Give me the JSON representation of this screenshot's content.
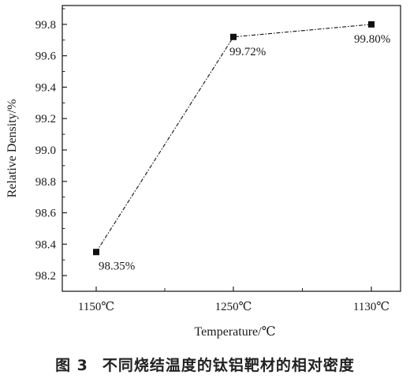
{
  "chart_data": {
    "type": "line",
    "categories": [
      "1150℃",
      "1250℃",
      "1130℃"
    ],
    "values": [
      98.35,
      99.72,
      99.8
    ],
    "data_labels": [
      "98.35%",
      "99.72%",
      "99.80%"
    ],
    "xlabel": "Temperature/℃",
    "ylabel": "Relative Density/%",
    "ylim": [
      98.1,
      99.92
    ],
    "yticks": [
      98.2,
      98.4,
      98.6,
      98.8,
      99.0,
      99.2,
      99.4,
      99.6,
      99.8
    ],
    "ytick_labels": [
      "98.2",
      "98.4",
      "98.6",
      "98.8",
      "99.0",
      "99.2",
      "99.4",
      "99.6",
      "99.8"
    ],
    "line_style": "dash-dot",
    "marker": "square",
    "grid": false,
    "color": "#111111"
  },
  "caption": {
    "number": "图 3",
    "text": "不同烧结温度的钛铝靶材的相对密度"
  }
}
